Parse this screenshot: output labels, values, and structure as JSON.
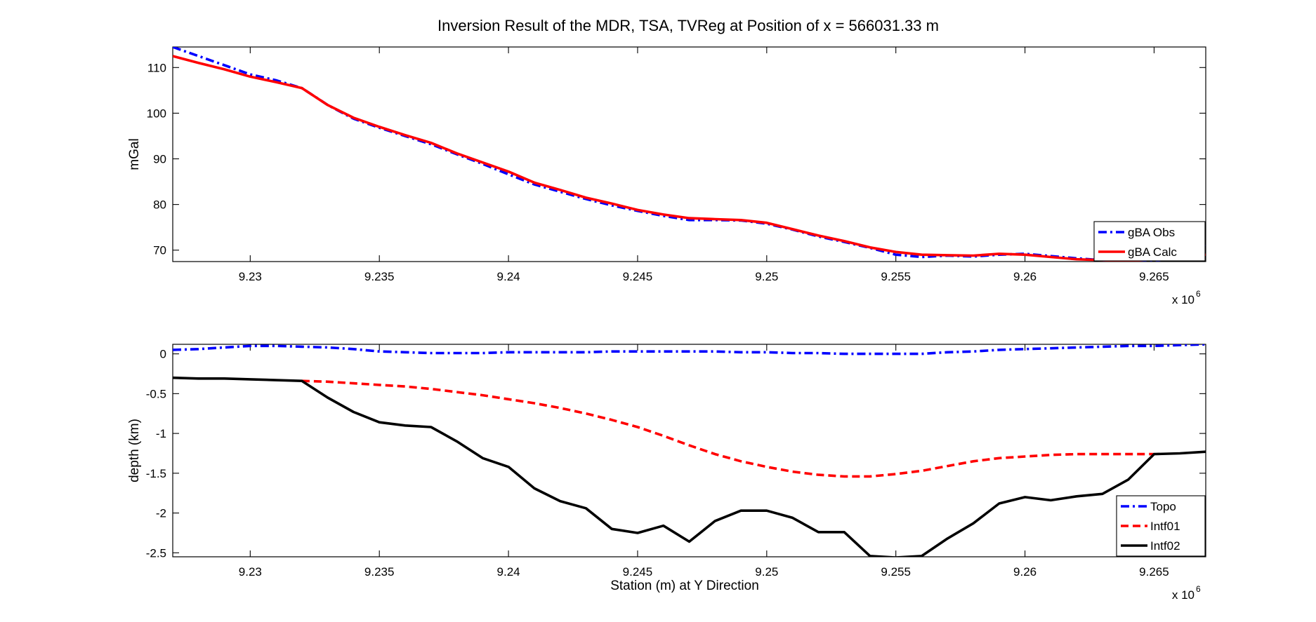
{
  "figure": {
    "title": "Inversion Result of the MDR, TSA, TVReg at Position of x = 566031.33 m"
  },
  "chart_data": [
    {
      "type": "line",
      "title": "Inversion Result of the MDR, TSA, TVReg at Position of x = 566031.33 m",
      "xlabel": "",
      "ylabel": "mGal",
      "x_exponent_label": "x 10",
      "x_exponent": "6",
      "xlim": [
        9227000,
        9267000
      ],
      "ylim": [
        67.5,
        114.5
      ],
      "xticks": [
        9230000,
        9235000,
        9240000,
        9245000,
        9250000,
        9255000,
        9260000,
        9265000
      ],
      "xtick_labels": [
        "9.23",
        "9.235",
        "9.24",
        "9.245",
        "9.25",
        "9.255",
        "9.26",
        "9.265"
      ],
      "yticks": [
        70,
        80,
        90,
        100,
        110
      ],
      "ytick_labels": [
        "70",
        "80",
        "90",
        "100",
        "110"
      ],
      "legend_position": "bottom-right",
      "series": [
        {
          "name": "gBA Obs",
          "color": "#0000ff",
          "style": "dashdot",
          "x": [
            9227000,
            9228000,
            9229000,
            9230000,
            9231000,
            9232000,
            9233000,
            9234000,
            9235000,
            9236000,
            9237000,
            9238000,
            9239000,
            9240000,
            9241000,
            9242000,
            9243000,
            9244000,
            9245000,
            9246000,
            9247000,
            9248000,
            9249000,
            9250000,
            9251000,
            9252000,
            9253000,
            9254000,
            9255000,
            9256000,
            9257000,
            9258000,
            9259000,
            9260000,
            9261000,
            9262000,
            9263000,
            9264000,
            9265000,
            9266000,
            9267000
          ],
          "y": [
            114.5,
            112.5,
            110.5,
            108.5,
            107.2,
            105.5,
            101.8,
            98.8,
            96.8,
            95.0,
            93.2,
            91.0,
            88.9,
            86.6,
            84.4,
            82.8,
            81.2,
            79.8,
            78.6,
            77.5,
            76.6,
            76.6,
            76.5,
            75.8,
            74.5,
            73.0,
            71.8,
            70.5,
            69.0,
            68.5,
            68.8,
            68.6,
            69.0,
            69.2,
            68.7,
            68.2,
            67.8,
            67.5,
            67.6,
            68.5,
            71.0
          ]
        },
        {
          "name": "gBA Calc",
          "color": "#ff0000",
          "style": "solid",
          "x": [
            9227000,
            9228000,
            9229000,
            9230000,
            9231000,
            9232000,
            9233000,
            9234000,
            9235000,
            9236000,
            9237000,
            9238000,
            9239000,
            9240000,
            9241000,
            9242000,
            9243000,
            9244000,
            9245000,
            9246000,
            9247000,
            9248000,
            9249000,
            9250000,
            9251000,
            9252000,
            9253000,
            9254000,
            9255000,
            9256000,
            9257000,
            9258000,
            9259000,
            9260000,
            9261000,
            9262000,
            9263000,
            9264000,
            9265000,
            9266000,
            9267000
          ],
          "y": [
            112.5,
            111.0,
            109.6,
            108.0,
            106.8,
            105.5,
            101.8,
            99.0,
            97.0,
            95.2,
            93.5,
            91.2,
            89.2,
            87.2,
            84.8,
            83.2,
            81.5,
            80.2,
            78.8,
            77.8,
            77.0,
            76.8,
            76.6,
            76.0,
            74.6,
            73.2,
            72.0,
            70.6,
            69.6,
            69.0,
            68.9,
            68.8,
            69.2,
            69.0,
            68.5,
            68.0,
            67.8,
            67.6,
            68.0,
            68.6,
            69.0
          ]
        }
      ]
    },
    {
      "type": "line",
      "title": "",
      "xlabel": "Station (m) at Y Direction",
      "ylabel": "depth (km)",
      "x_exponent_label": "x 10",
      "x_exponent": "6",
      "xlim": [
        9227000,
        9267000
      ],
      "ylim": [
        -2.55,
        0.12
      ],
      "xticks": [
        9230000,
        9235000,
        9240000,
        9245000,
        9250000,
        9255000,
        9260000,
        9265000
      ],
      "xtick_labels": [
        "9.23",
        "9.235",
        "9.24",
        "9.245",
        "9.25",
        "9.255",
        "9.26",
        "9.265"
      ],
      "yticks": [
        -2.5,
        -2,
        -1.5,
        -1,
        -0.5,
        0
      ],
      "ytick_labels": [
        "-2.5",
        "-2",
        "-1.5",
        "-1",
        "-0.5",
        "0"
      ],
      "legend_position": "bottom-right",
      "series": [
        {
          "name": "Topo",
          "color": "#0000ff",
          "style": "dashdot",
          "x": [
            9227000,
            9228000,
            9229000,
            9230000,
            9231000,
            9232000,
            9233000,
            9234000,
            9235000,
            9236000,
            9237000,
            9238000,
            9239000,
            9240000,
            9241000,
            9242000,
            9243000,
            9244000,
            9245000,
            9246000,
            9247000,
            9248000,
            9249000,
            9250000,
            9251000,
            9252000,
            9253000,
            9254000,
            9255000,
            9256000,
            9257000,
            9258000,
            9259000,
            9260000,
            9261000,
            9262000,
            9263000,
            9264000,
            9265000,
            9266000,
            9267000
          ],
          "y": [
            0.05,
            0.06,
            0.08,
            0.1,
            0.1,
            0.09,
            0.08,
            0.06,
            0.03,
            0.02,
            0.01,
            0.01,
            0.01,
            0.02,
            0.02,
            0.02,
            0.02,
            0.03,
            0.03,
            0.03,
            0.03,
            0.03,
            0.02,
            0.02,
            0.01,
            0.01,
            0.0,
            0.0,
            0.0,
            0.0,
            0.02,
            0.03,
            0.05,
            0.06,
            0.07,
            0.08,
            0.09,
            0.1,
            0.1,
            0.11,
            0.12
          ]
        },
        {
          "name": "Intf01",
          "color": "#ff0000",
          "style": "dashed",
          "x": [
            9232000,
            9233000,
            9234000,
            9235000,
            9236000,
            9237000,
            9238000,
            9239000,
            9240000,
            9241000,
            9242000,
            9243000,
            9244000,
            9245000,
            9246000,
            9247000,
            9248000,
            9249000,
            9250000,
            9251000,
            9252000,
            9253000,
            9254000,
            9255000,
            9256000,
            9257000,
            9258000,
            9259000,
            9260000,
            9261000,
            9262000,
            9263000,
            9264000,
            9265000
          ],
          "y": [
            -0.34,
            -0.35,
            -0.37,
            -0.39,
            -0.41,
            -0.44,
            -0.48,
            -0.52,
            -0.57,
            -0.62,
            -0.68,
            -0.75,
            -0.83,
            -0.92,
            -1.03,
            -1.15,
            -1.26,
            -1.35,
            -1.42,
            -1.48,
            -1.52,
            -1.54,
            -1.54,
            -1.51,
            -1.47,
            -1.41,
            -1.35,
            -1.31,
            -1.29,
            -1.27,
            -1.26,
            -1.26,
            -1.26,
            -1.26
          ]
        },
        {
          "name": "Intf02",
          "color": "#000000",
          "style": "solid",
          "x": [
            9227000,
            9228000,
            9229000,
            9230000,
            9231000,
            9232000,
            9233000,
            9234000,
            9235000,
            9236000,
            9237000,
            9238000,
            9239000,
            9240000,
            9241000,
            9242000,
            9243000,
            9244000,
            9245000,
            9246000,
            9247000,
            9248000,
            9249000,
            9250000,
            9251000,
            9252000,
            9253000,
            9254000,
            9255000,
            9256000,
            9257000,
            9258000,
            9259000,
            9260000,
            9261000,
            9262000,
            9263000,
            9264000,
            9265000,
            9266000,
            9267000
          ],
          "y": [
            -0.3,
            -0.31,
            -0.31,
            -0.32,
            -0.33,
            -0.34,
            -0.55,
            -0.73,
            -0.86,
            -0.9,
            -0.92,
            -1.1,
            -1.31,
            -1.42,
            -1.69,
            -1.85,
            -1.94,
            -2.2,
            -2.25,
            -2.16,
            -2.36,
            -2.1,
            -1.97,
            -1.97,
            -2.06,
            -2.24,
            -2.24,
            -2.54,
            -2.56,
            -2.54,
            -2.32,
            -2.13,
            -1.88,
            -1.8,
            -1.84,
            -1.79,
            -1.76,
            -1.58,
            -1.26,
            -1.25,
            -1.23
          ]
        }
      ]
    }
  ]
}
